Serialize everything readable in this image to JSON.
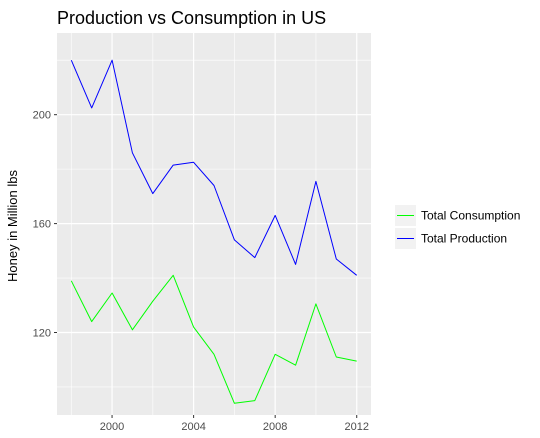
{
  "chart_data": {
    "type": "line",
    "title": "Production vs Consumption in US",
    "xlabel": "",
    "ylabel": "Honey in Million lbs",
    "x": [
      1998,
      1999,
      2000,
      2001,
      2002,
      2003,
      2004,
      2005,
      2006,
      2007,
      2008,
      2009,
      2010,
      2011,
      2012
    ],
    "series": [
      {
        "name": "Total Consumption",
        "color": "#00ff00",
        "values": [
          139,
          124,
          134.5,
          121,
          131.5,
          141,
          122,
          112,
          94,
          95,
          112,
          108,
          130.5,
          111,
          109.5
        ]
      },
      {
        "name": "Total Production",
        "color": "#0000ff",
        "values": [
          220,
          202.5,
          220,
          186,
          171,
          181.5,
          182.5,
          174,
          154,
          147.5,
          163,
          145,
          175.5,
          147,
          141
        ]
      }
    ],
    "xlim": [
      1997.3,
      2012.7
    ],
    "ylim": [
      89.7,
      230
    ],
    "xticks": [
      2000,
      2004,
      2008,
      2012
    ],
    "yticks": [
      120,
      160,
      200
    ],
    "grid": true,
    "legend_position": "right",
    "panel_color": "#ebebeb",
    "grid_color": "#ffffff"
  }
}
